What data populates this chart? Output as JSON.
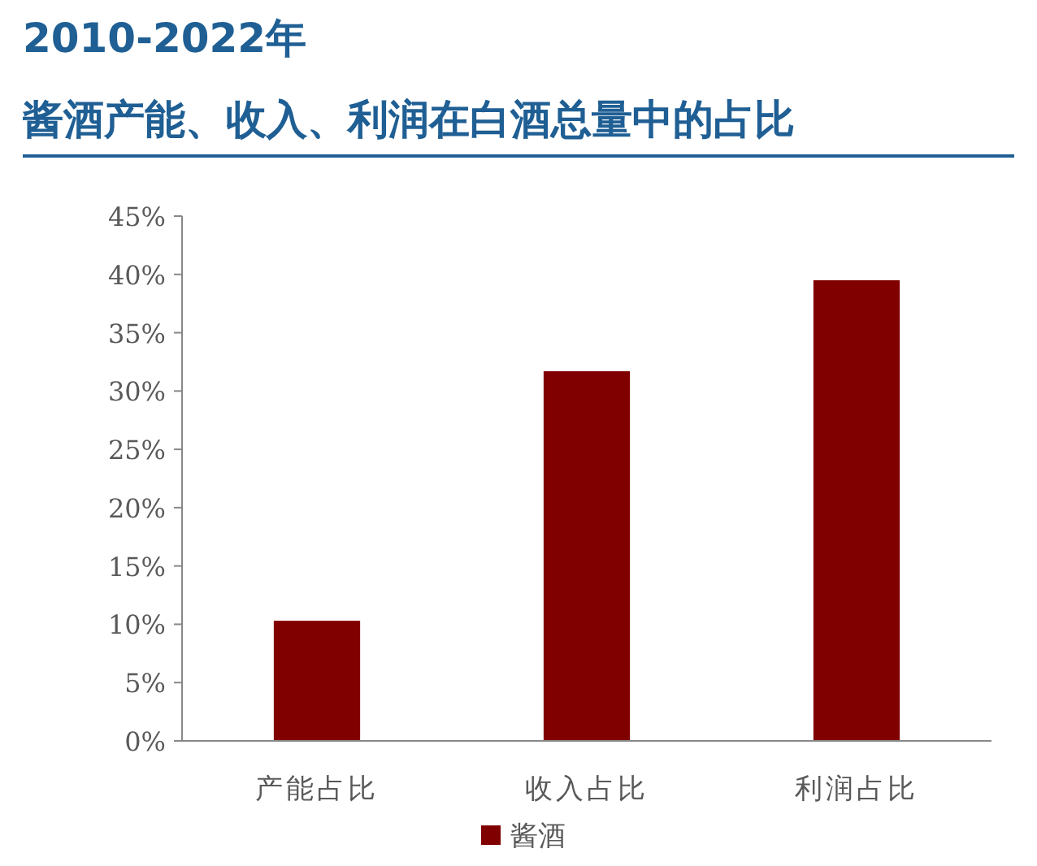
{
  "chart_data": {
    "type": "bar",
    "title": "2010-2022年",
    "subtitle": "酱酒产能、收入、利润在白酒总量中的占比",
    "categories": [
      "产能占比",
      "收入占比",
      "利润占比"
    ],
    "series": [
      {
        "name": "酱酒",
        "color": "#800000",
        "values": [
          10.3,
          31.7,
          39.5
        ]
      }
    ],
    "ylim": [
      0,
      45
    ],
    "yticks": [
      {
        "value": 0,
        "label": "0%"
      },
      {
        "value": 5,
        "label": "5%"
      },
      {
        "value": 10,
        "label": "10%"
      },
      {
        "value": 15,
        "label": "15%"
      },
      {
        "value": 20,
        "label": "20%"
      },
      {
        "value": 25,
        "label": "25%"
      },
      {
        "value": 30,
        "label": "30%"
      },
      {
        "value": 35,
        "label": "35%"
      },
      {
        "value": 40,
        "label": "40%"
      },
      {
        "value": 45,
        "label": "45%"
      }
    ],
    "grid": false,
    "legend": "bottom"
  }
}
